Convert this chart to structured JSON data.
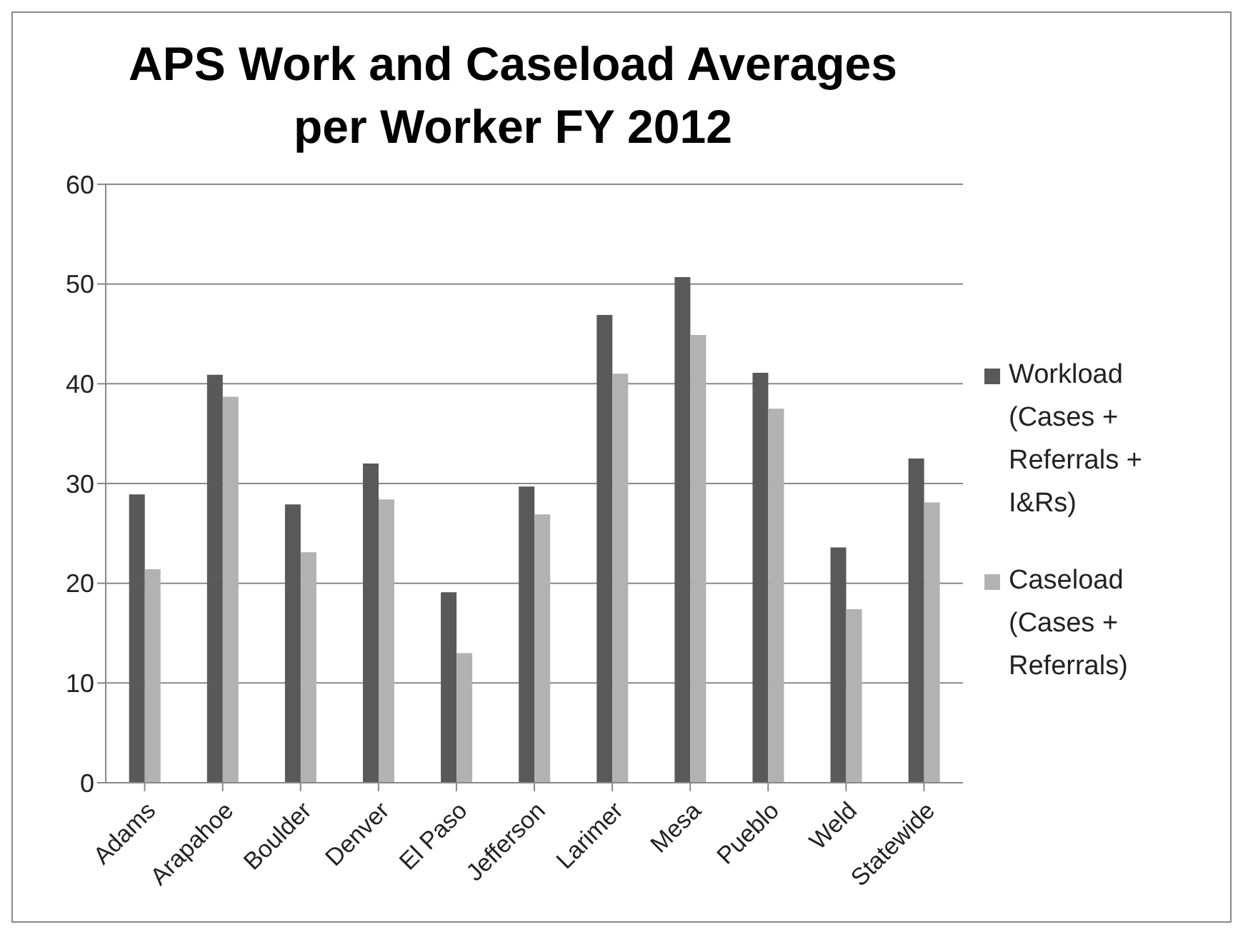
{
  "chart_data": {
    "type": "bar",
    "title": "APS Work and Caseload Averages per Worker FY 2012",
    "categories": [
      "Adams",
      "Arapahoe",
      "Boulder",
      "Denver",
      "El Paso",
      "Jefferson",
      "Larimer",
      "Mesa",
      "Pueblo",
      "Weld",
      "Statewide"
    ],
    "series": [
      {
        "name": "Workload (Cases + Referrals + I&Rs)",
        "color": "#595959",
        "values": [
          28.9,
          40.9,
          27.9,
          32,
          19.1,
          29.7,
          46.9,
          50.7,
          41.1,
          23.6,
          32.5
        ]
      },
      {
        "name": "Caseload (Cases + Referrals)",
        "color": "#b2b2b2",
        "values": [
          21.4,
          38.7,
          23.1,
          28.4,
          13,
          26.9,
          41,
          44.9,
          37.5,
          17.4,
          28.1
        ]
      }
    ],
    "ylim": [
      0,
      60
    ],
    "yticks": [
      0,
      10,
      20,
      30,
      40,
      50,
      60
    ],
    "grid": "y",
    "legend": "right"
  }
}
